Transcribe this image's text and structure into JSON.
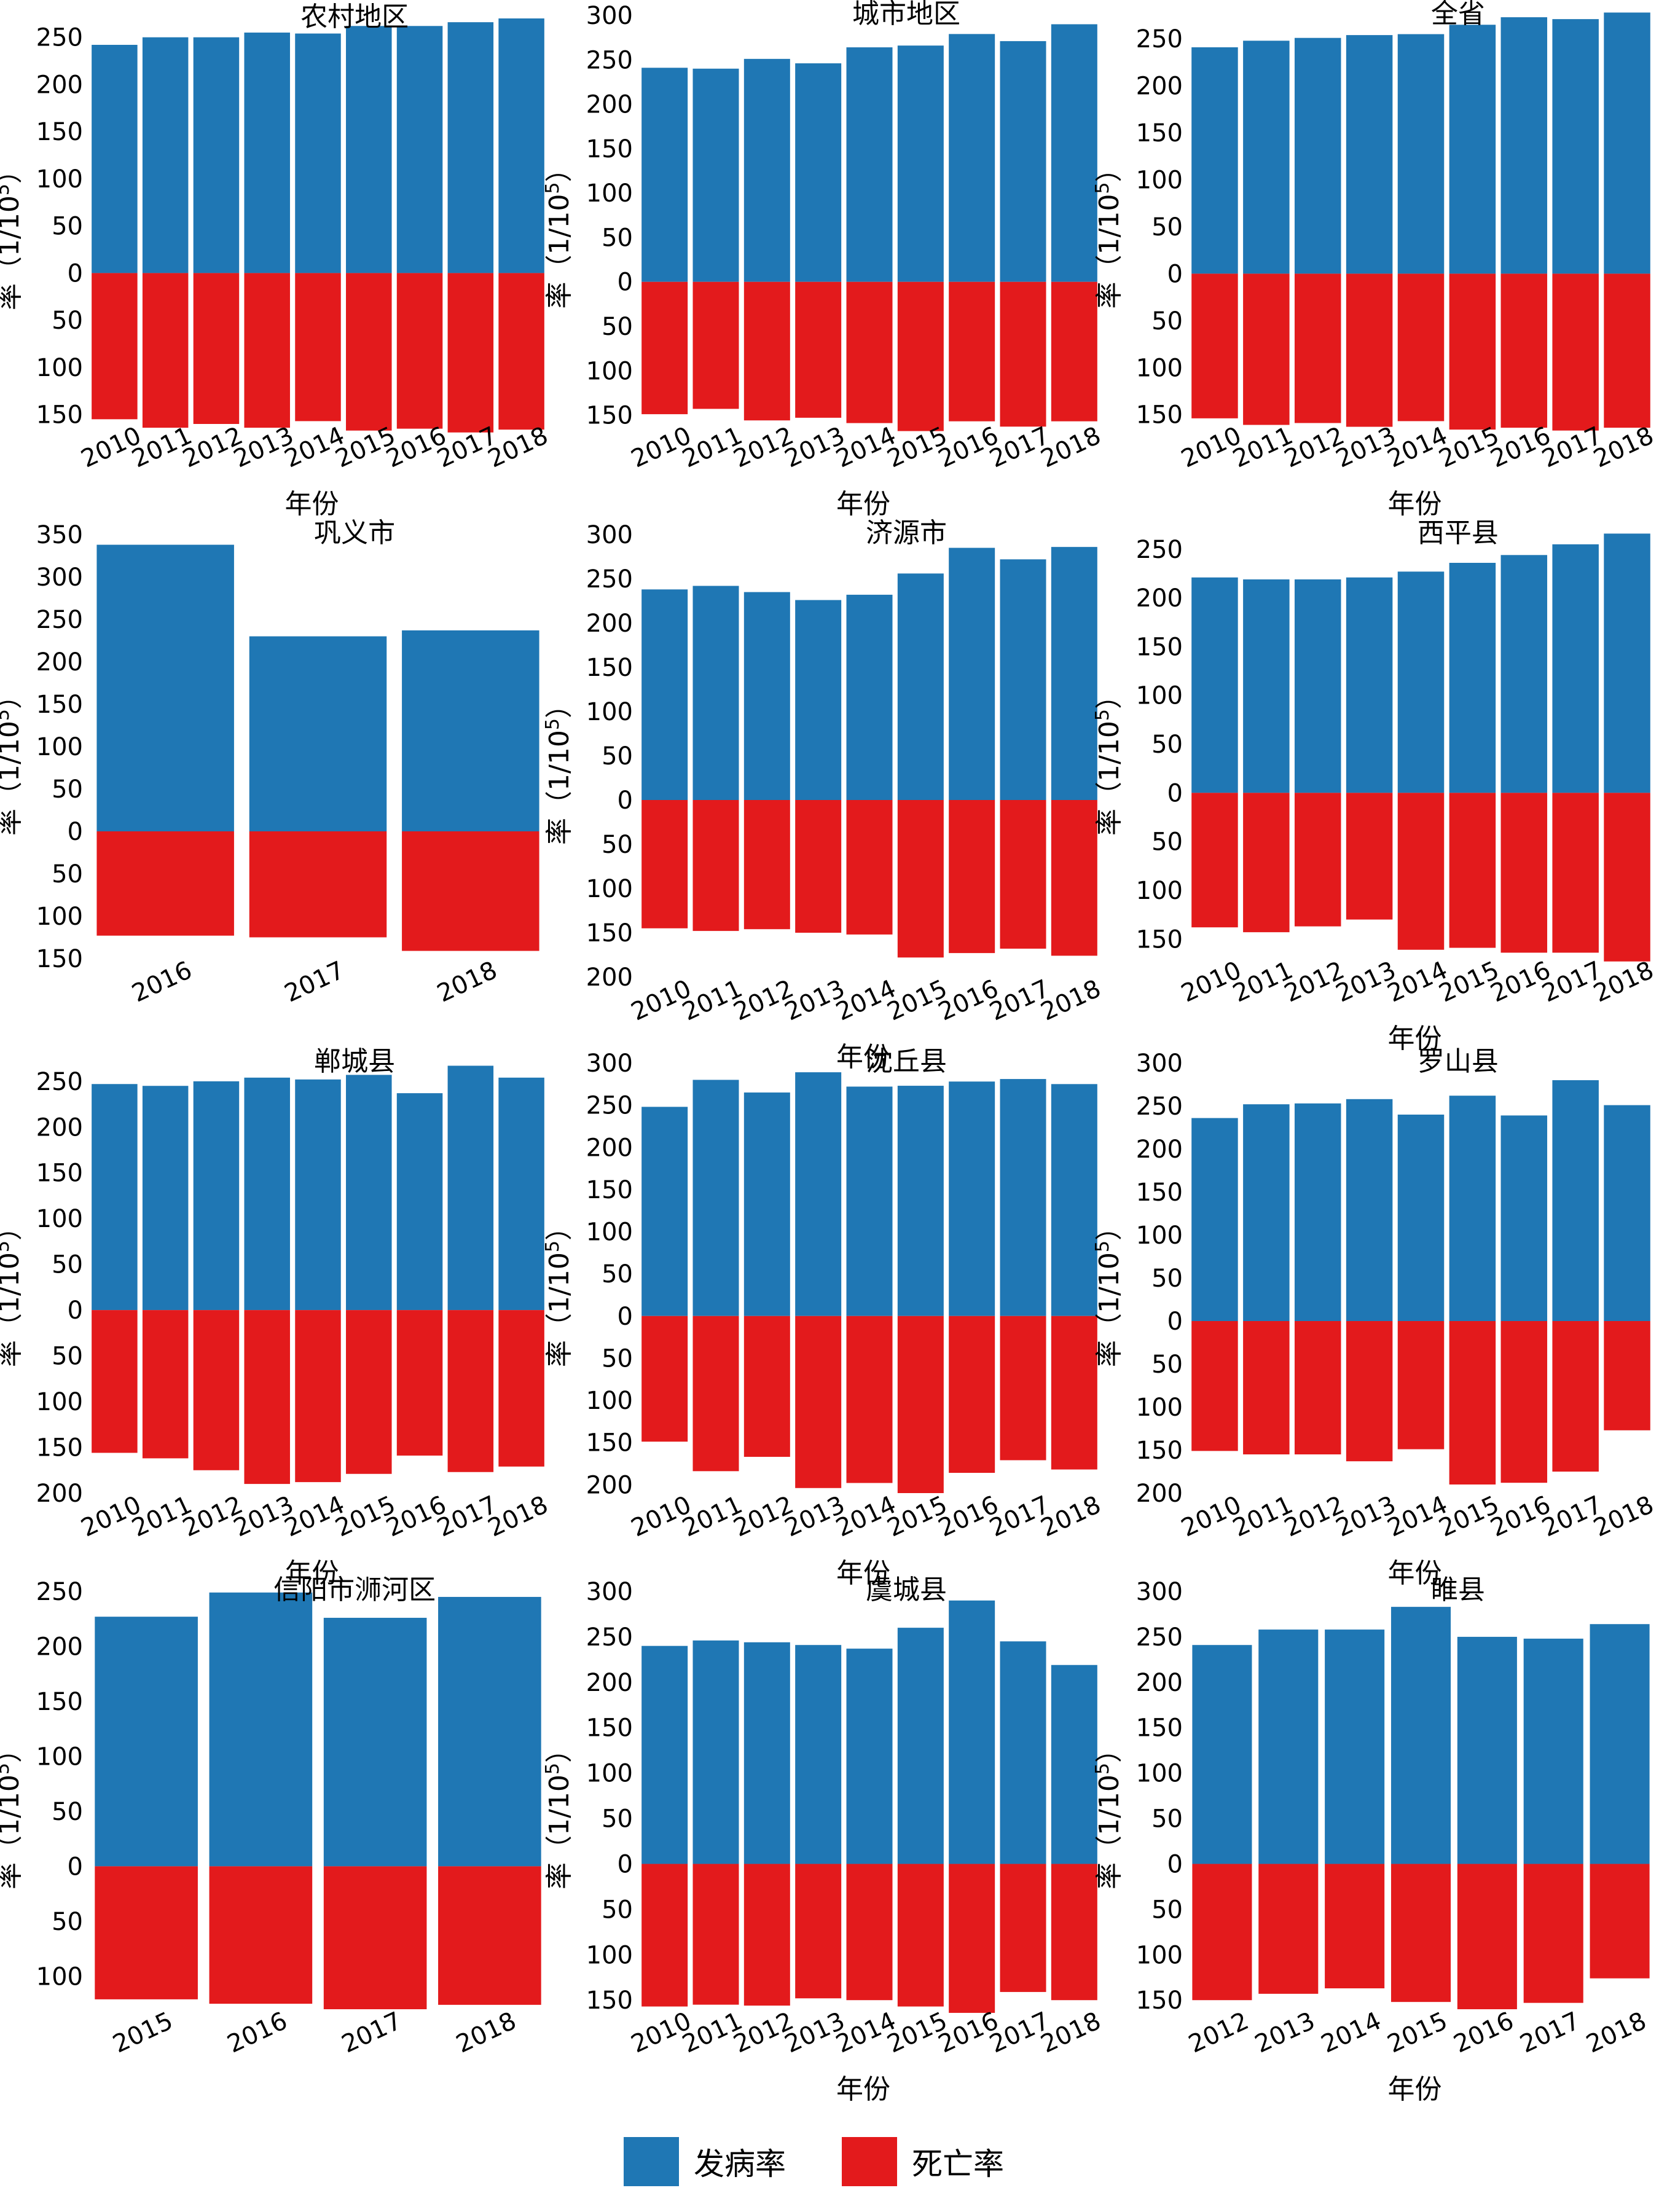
{
  "colors": {
    "incidence": "#1f77b4",
    "mortality": "#e31a1c",
    "text": "#000000"
  },
  "legend": {
    "incidence_label": "发病率",
    "mortality_label": "死亡率"
  },
  "chart_data": [
    {
      "type": "bar",
      "title": "农村地区",
      "xlabel": "年份",
      "ylabel_prefix": "率（1/10",
      "ylabel_sup": "5",
      "ylabel_suffix": "）",
      "categories": [
        "2010",
        "2011",
        "2012",
        "2013",
        "2014",
        "2015",
        "2016",
        "2017",
        "2018"
      ],
      "series": [
        {
          "name": "发病率",
          "values": [
            242,
            250,
            250,
            255,
            254,
            262,
            262,
            266,
            270
          ]
        },
        {
          "name": "死亡率",
          "values": [
            155,
            164,
            160,
            164,
            157,
            167,
            165,
            169,
            166
          ]
        }
      ],
      "ylim": [
        -160,
        270
      ],
      "yticks": [
        250,
        200,
        150,
        100,
        50,
        0,
        -50,
        -100,
        -150
      ],
      "show_xlabel": true
    },
    {
      "type": "bar",
      "title": "城市地区",
      "xlabel": "年份",
      "ylabel_prefix": "率（1/10",
      "ylabel_sup": "5",
      "ylabel_suffix": "）",
      "categories": [
        "2010",
        "2011",
        "2012",
        "2013",
        "2014",
        "2015",
        "2016",
        "2017",
        "2018"
      ],
      "series": [
        {
          "name": "发病率",
          "values": [
            241,
            240,
            251,
            246,
            264,
            266,
            279,
            271,
            290
          ]
        },
        {
          "name": "死亡率",
          "values": [
            149,
            143,
            156,
            153,
            159,
            168,
            157,
            163,
            157
          ]
        }
      ],
      "ylim": [
        -160,
        300
      ],
      "yticks": [
        300,
        250,
        200,
        150,
        100,
        50,
        0,
        -50,
        -100,
        -150
      ],
      "show_xlabel": true
    },
    {
      "type": "bar",
      "title": "全省",
      "xlabel": "年份",
      "ylabel_prefix": "率（1/10",
      "ylabel_sup": "5",
      "ylabel_suffix": "）",
      "categories": [
        "2010",
        "2011",
        "2012",
        "2013",
        "2014",
        "2015",
        "2016",
        "2017",
        "2018"
      ],
      "series": [
        {
          "name": "发病率",
          "values": [
            241,
            248,
            251,
            254,
            255,
            265,
            273,
            271,
            278
          ]
        },
        {
          "name": "死亡率",
          "values": [
            154,
            161,
            159,
            163,
            157,
            166,
            164,
            167,
            164
          ]
        }
      ],
      "ylim": [
        -160,
        275
      ],
      "yticks": [
        250,
        200,
        150,
        100,
        50,
        0,
        -50,
        -100,
        -150
      ],
      "show_xlabel": true
    },
    {
      "type": "bar",
      "title": "巩义市",
      "xlabel": "",
      "ylabel_prefix": "率（1/10",
      "ylabel_sup": "5",
      "ylabel_suffix": "）",
      "categories": [
        "2016",
        "2017",
        "2018"
      ],
      "series": [
        {
          "name": "发病率",
          "values": [
            338,
            230,
            237
          ]
        },
        {
          "name": "死亡率",
          "values": [
            123,
            125,
            141
          ]
        }
      ],
      "ylim": [
        -150,
        350
      ],
      "yticks": [
        350,
        300,
        250,
        200,
        150,
        100,
        50,
        0,
        -50,
        -100,
        -150
      ],
      "show_xlabel": false
    },
    {
      "type": "bar",
      "title": "济源市",
      "xlabel": "年份",
      "ylabel_prefix": "率（1/10",
      "ylabel_sup": "5",
      "ylabel_suffix": "）",
      "categories": [
        "2010",
        "2011",
        "2012",
        "2013",
        "2014",
        "2015",
        "2016",
        "2017",
        "2018"
      ],
      "series": [
        {
          "name": "发病率",
          "values": [
            238,
            242,
            235,
            226,
            232,
            256,
            285,
            272,
            286
          ]
        },
        {
          "name": "死亡率",
          "values": [
            145,
            148,
            146,
            150,
            152,
            178,
            173,
            168,
            176
          ]
        }
      ],
      "ylim": [
        -200,
        300
      ],
      "yticks": [
        300,
        250,
        200,
        150,
        100,
        50,
        0,
        -50,
        -100,
        -150,
        -200
      ],
      "show_xlabel": true
    },
    {
      "type": "bar",
      "title": "西平县",
      "xlabel": "年份",
      "ylabel_prefix": "率（1/10",
      "ylabel_sup": "5",
      "ylabel_suffix": "）",
      "categories": [
        "2010",
        "2011",
        "2012",
        "2013",
        "2014",
        "2015",
        "2016",
        "2017",
        "2018"
      ],
      "series": [
        {
          "name": "发病率",
          "values": [
            221,
            219,
            219,
            221,
            227,
            236,
            244,
            255,
            266
          ]
        },
        {
          "name": "死亡率",
          "values": [
            138,
            143,
            137,
            130,
            161,
            159,
            164,
            164,
            173
          ]
        }
      ],
      "ylim": [
        -170,
        265
      ],
      "yticks": [
        250,
        200,
        150,
        100,
        50,
        0,
        -50,
        -100,
        -150
      ],
      "show_xlabel": true
    },
    {
      "type": "bar",
      "title": "郸城县",
      "xlabel": "年份",
      "ylabel_prefix": "率（1/10",
      "ylabel_sup": "5",
      "ylabel_suffix": "）",
      "categories": [
        "2010",
        "2011",
        "2012",
        "2013",
        "2014",
        "2015",
        "2016",
        "2017",
        "2018"
      ],
      "series": [
        {
          "name": "发病率",
          "values": [
            247,
            245,
            250,
            254,
            252,
            257,
            237,
            267,
            254
          ]
        },
        {
          "name": "死亡率",
          "values": [
            156,
            162,
            175,
            190,
            188,
            179,
            159,
            177,
            171
          ]
        }
      ],
      "ylim": [
        -200,
        270
      ],
      "yticks": [
        250,
        200,
        150,
        100,
        50,
        0,
        -50,
        -100,
        -150,
        -200
      ],
      "show_xlabel": true
    },
    {
      "type": "bar",
      "title": "沈丘县",
      "xlabel": "年份",
      "ylabel_prefix": "率（1/10",
      "ylabel_sup": "5",
      "ylabel_suffix": "）",
      "categories": [
        "2010",
        "2011",
        "2012",
        "2013",
        "2014",
        "2015",
        "2016",
        "2017",
        "2018"
      ],
      "series": [
        {
          "name": "发病率",
          "values": [
            248,
            280,
            265,
            289,
            272,
            273,
            278,
            281,
            275
          ]
        },
        {
          "name": "死亡率",
          "values": [
            149,
            184,
            167,
            204,
            198,
            210,
            186,
            171,
            182
          ]
        }
      ],
      "ylim": [
        -210,
        300
      ],
      "yticks": [
        300,
        250,
        200,
        150,
        100,
        50,
        0,
        -50,
        -100,
        -150,
        -200
      ],
      "show_xlabel": true
    },
    {
      "type": "bar",
      "title": "罗山县",
      "xlabel": "年份",
      "ylabel_prefix": "率（1/10",
      "ylabel_sup": "5",
      "ylabel_suffix": "）",
      "categories": [
        "2010",
        "2011",
        "2012",
        "2013",
        "2014",
        "2015",
        "2016",
        "2017",
        "2018"
      ],
      "series": [
        {
          "name": "发病率",
          "values": [
            236,
            252,
            253,
            258,
            240,
            262,
            239,
            280,
            251
          ]
        },
        {
          "name": "死亡率",
          "values": [
            151,
            155,
            155,
            163,
            149,
            190,
            188,
            175,
            127
          ]
        }
      ],
      "ylim": [
        -200,
        300
      ],
      "yticks": [
        300,
        250,
        200,
        150,
        100,
        50,
        0,
        -50,
        -100,
        -150,
        -200
      ],
      "show_xlabel": true
    },
    {
      "type": "bar",
      "title": "信阳市浉河区",
      "xlabel": "",
      "ylabel_prefix": "率（1/10",
      "ylabel_sup": "5",
      "ylabel_suffix": "）",
      "categories": [
        "2015",
        "2016",
        "2017",
        "2018"
      ],
      "series": [
        {
          "name": "发病率",
          "values": [
            227,
            249,
            226,
            245
          ]
        },
        {
          "name": "死亡率",
          "values": [
            121,
            125,
            130,
            126
          ]
        }
      ],
      "ylim": [
        -130,
        250
      ],
      "yticks": [
        250,
        200,
        150,
        100,
        50,
        0,
        -50,
        -100
      ],
      "show_xlabel": false
    },
    {
      "type": "bar",
      "title": "虞城县",
      "xlabel": "年份",
      "ylabel_prefix": "率（1/10",
      "ylabel_sup": "5",
      "ylabel_suffix": "）",
      "categories": [
        "2010",
        "2011",
        "2012",
        "2013",
        "2014",
        "2015",
        "2016",
        "2017",
        "2018"
      ],
      "series": [
        {
          "name": "发病率",
          "values": [
            240,
            246,
            244,
            241,
            237,
            260,
            290,
            245,
            219
          ]
        },
        {
          "name": "死亡率",
          "values": [
            157,
            155,
            156,
            148,
            150,
            157,
            164,
            141,
            150
          ]
        }
      ],
      "ylim": [
        -160,
        300
      ],
      "yticks": [
        300,
        250,
        200,
        150,
        100,
        50,
        0,
        -50,
        -100,
        -150
      ],
      "show_xlabel": true
    },
    {
      "type": "bar",
      "title": "睢县",
      "xlabel": "年份",
      "ylabel_prefix": "率（1/10",
      "ylabel_sup": "5",
      "ylabel_suffix": "）",
      "categories": [
        "2012",
        "2013",
        "2014",
        "2015",
        "2016",
        "2017",
        "2018"
      ],
      "series": [
        {
          "name": "发病率",
          "values": [
            241,
            258,
            258,
            283,
            250,
            248,
            264
          ]
        },
        {
          "name": "死亡率",
          "values": [
            150,
            143,
            137,
            152,
            160,
            153,
            126
          ]
        }
      ],
      "ylim": [
        -160,
        300
      ],
      "yticks": [
        300,
        250,
        200,
        150,
        100,
        50,
        0,
        -50,
        -100,
        -150
      ],
      "show_xlabel": true
    }
  ]
}
